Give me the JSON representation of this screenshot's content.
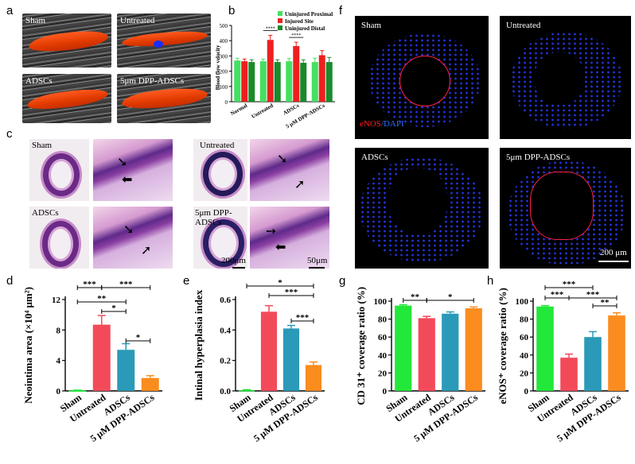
{
  "panel_labels": {
    "a": "a",
    "b": "b",
    "c": "c",
    "d": "d",
    "e": "e",
    "f": "f",
    "g": "g",
    "h": "h"
  },
  "panel_a": {
    "captions": [
      "Sham",
      "Untreated",
      "ADSCs",
      "5μm DPP-ADSCs"
    ]
  },
  "panel_c": {
    "captions": [
      "Sham",
      "Untreated",
      "ADSCs",
      "5μm DPP-ADSCs"
    ],
    "scale_left": "200μm",
    "scale_right": "50μm"
  },
  "panel_f": {
    "captions": [
      "Sham",
      "Untreated",
      "ADSCs",
      "5μm DPP-ADSCs"
    ],
    "stain_red": "eNOS",
    "stain_sep": "/",
    "stain_blue": "DAPI",
    "scale": "200 μm"
  },
  "colors": {
    "green": "#22e83a",
    "red": "#f34a5a",
    "blue": "#2a9ab8",
    "orange": "#fb8c1e",
    "b_light": "#44e060",
    "b_red": "#ee1f1f",
    "b_dark": "#1a8a2a"
  },
  "chart_data": [
    {
      "type": "bar",
      "title": "",
      "ylabel": "Blood flow velocity",
      "xlabel": "",
      "ylim": [
        0,
        500
      ],
      "yticks": [
        0,
        100,
        200,
        300,
        400,
        500
      ],
      "categories": [
        "Normal",
        "Untreated",
        "ADSCs",
        "5 μM DPP-ADSCs"
      ],
      "series": [
        {
          "name": "Uninjured Proximal",
          "values": [
            270,
            265,
            265,
            260
          ]
        },
        {
          "name": "Injured Site",
          "values": [
            265,
            405,
            365,
            305
          ]
        },
        {
          "name": "Uninjured Distal",
          "values": [
            260,
            260,
            255,
            260
          ]
        }
      ],
      "errors": [
        [
          15,
          15,
          18,
          25
        ],
        [
          15,
          30,
          25,
          30
        ],
        [
          15,
          15,
          20,
          30
        ]
      ],
      "annotations": [
        "****",
        "****"
      ]
    },
    {
      "type": "bar",
      "title": "",
      "ylabel": "Neointima area (×10⁴ μm²)",
      "ylim": [
        0,
        12
      ],
      "yticks": [
        0,
        4,
        8,
        12
      ],
      "categories": [
        "Sham",
        "Untreated",
        "ADSCs",
        "5 μM DPP-ADSCs"
      ],
      "values": [
        0.05,
        8.7,
        5.4,
        1.7
      ],
      "errors": [
        0.05,
        1.2,
        0.8,
        0.3
      ],
      "brackets": [
        {
          "from": 0,
          "to": 1,
          "label": "***"
        },
        {
          "from": 1,
          "to": 3,
          "label": "***"
        },
        {
          "from": 0,
          "to": 2,
          "label": "**"
        },
        {
          "from": 1,
          "to": 2,
          "label": "*"
        },
        {
          "from": 2,
          "to": 3,
          "label": "*"
        }
      ]
    },
    {
      "type": "bar",
      "title": "",
      "ylabel": "Intinal hyperplasia index",
      "ylim": [
        0,
        0.6
      ],
      "yticks": [
        0.0,
        0.2,
        0.4,
        0.6
      ],
      "categories": [
        "Sham",
        "Untreated",
        "ADSCs",
        "5 μM DPP-ADSCs"
      ],
      "values": [
        0.005,
        0.52,
        0.41,
        0.17
      ],
      "errors": [
        0.003,
        0.04,
        0.02,
        0.02
      ],
      "brackets": [
        {
          "from": 0,
          "to": 3,
          "label": "*"
        },
        {
          "from": 1,
          "to": 3,
          "label": "***"
        },
        {
          "from": 2,
          "to": 3,
          "label": "***"
        }
      ]
    },
    {
      "type": "bar",
      "title": "",
      "ylabel": "CD 31⁺ coverage ratio (%)",
      "ylim": [
        0,
        100
      ],
      "yticks": [
        0,
        20,
        40,
        60,
        80,
        100
      ],
      "categories": [
        "Sham",
        "Untreated",
        "ADSCs",
        "5 μM DPP-ADSCs"
      ],
      "values": [
        95,
        81,
        86,
        92
      ],
      "errors": [
        1,
        2,
        2,
        1.5
      ],
      "brackets": [
        {
          "from": 0,
          "to": 1,
          "label": "**"
        },
        {
          "from": 1,
          "to": 3,
          "label": "*"
        }
      ]
    },
    {
      "type": "bar",
      "title": "",
      "ylabel": "eNOS⁺ coverage ratio (%)",
      "ylim": [
        0,
        100
      ],
      "yticks": [
        0,
        20,
        40,
        60,
        80,
        100
      ],
      "categories": [
        "Sham",
        "Untreated",
        "ADSCs",
        "5 μM DPP-ADSCs"
      ],
      "values": [
        94,
        37,
        60,
        84
      ],
      "errors": [
        1,
        4,
        6,
        3
      ],
      "brackets": [
        {
          "from": 0,
          "to": 2,
          "label": "***"
        },
        {
          "from": 0,
          "to": 1,
          "label": "***"
        },
        {
          "from": 1,
          "to": 3,
          "label": "***"
        },
        {
          "from": 2,
          "to": 3,
          "label": "**"
        }
      ]
    }
  ]
}
